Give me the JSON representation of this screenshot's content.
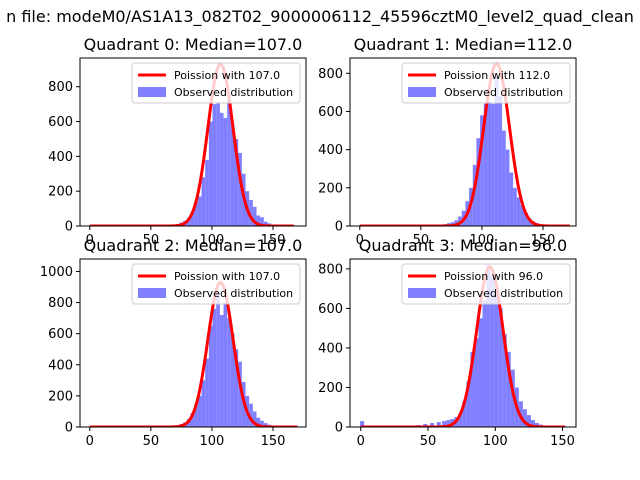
{
  "suptitle": "n file: modeM0/AS1A13_082T02_9000006112_45596cztM0_level2_quad_clean",
  "colors": {
    "hist": "#7f7fff",
    "poisson": "#ff0000",
    "axis": "#000000"
  },
  "chart_data": [
    {
      "type": "bar",
      "title": "Quadrant 0: Median=107.0",
      "xlim": [
        -8,
        177
      ],
      "ylim": [
        0,
        965
      ],
      "xticks": [
        0,
        50,
        100,
        150
      ],
      "yticks": [
        0,
        200,
        400,
        600,
        800
      ],
      "legend_position": "top-right",
      "series": [
        {
          "name": "Poission with 107.0",
          "type": "line",
          "mean": 107,
          "peak": 930,
          "sigma": 10.3,
          "x_range": [
            0,
            167
          ]
        },
        {
          "name": "Observed distribution",
          "type": "histogram",
          "bin_centers": [
            72,
            75,
            78,
            81,
            84,
            87,
            90,
            93,
            96,
            99,
            102,
            105,
            108,
            111,
            114,
            117,
            120,
            123,
            126,
            129,
            132,
            135,
            138,
            141,
            144,
            147,
            150
          ],
          "values": [
            10,
            20,
            30,
            45,
            75,
            140,
            170,
            280,
            380,
            600,
            700,
            710,
            650,
            620,
            730,
            580,
            500,
            420,
            300,
            200,
            150,
            110,
            60,
            50,
            25,
            15,
            8
          ]
        }
      ]
    },
    {
      "type": "bar",
      "title": "Quadrant 1: Median=112.0",
      "xlim": [
        -8,
        177
      ],
      "ylim": [
        0,
        880
      ],
      "xticks": [
        0,
        50,
        100,
        150
      ],
      "yticks": [
        0,
        200,
        400,
        600,
        800
      ],
      "legend_position": "top-right",
      "series": [
        {
          "name": "Poission with 112.0",
          "type": "line",
          "mean": 112,
          "peak": 850,
          "sigma": 10.6,
          "x_range": [
            0,
            172
          ]
        },
        {
          "name": "Observed distribution",
          "type": "histogram",
          "bin_centers": [
            70,
            73,
            76,
            79,
            82,
            85,
            88,
            91,
            94,
            97,
            100,
            103,
            106,
            109,
            112,
            115,
            118,
            121,
            124,
            127,
            130,
            133,
            136,
            139,
            142,
            145,
            148
          ],
          "values": [
            10,
            15,
            20,
            30,
            50,
            80,
            130,
            200,
            320,
            460,
            580,
            640,
            650,
            640,
            780,
            680,
            500,
            400,
            280,
            200,
            150,
            110,
            70,
            40,
            25,
            15,
            8
          ]
        }
      ]
    },
    {
      "type": "bar",
      "title": "Quadrant 2: Median=107.0",
      "xlim": [
        -8,
        177
      ],
      "ylim": [
        0,
        1080
      ],
      "xticks": [
        0,
        50,
        100,
        150
      ],
      "yticks": [
        0,
        200,
        400,
        600,
        800,
        1000
      ],
      "legend_position": "top-right",
      "series": [
        {
          "name": "Poission with 107.0",
          "type": "line",
          "mean": 107,
          "peak": 930,
          "sigma": 10.3,
          "x_range": [
            0,
            170
          ]
        },
        {
          "name": "Observed distribution",
          "type": "histogram",
          "bin_centers": [
            72,
            75,
            78,
            81,
            84,
            87,
            90,
            93,
            96,
            99,
            102,
            105,
            108,
            111,
            114,
            117,
            120,
            123,
            126,
            129,
            132,
            135,
            138,
            141,
            144,
            147,
            150
          ],
          "values": [
            10,
            20,
            30,
            50,
            90,
            150,
            200,
            300,
            440,
            650,
            760,
            870,
            720,
            800,
            700,
            600,
            500,
            420,
            290,
            200,
            150,
            100,
            60,
            40,
            25,
            15,
            8
          ]
        }
      ]
    },
    {
      "type": "bar",
      "title": "Quadrant 3: Median=96.0",
      "xlim": [
        -8,
        160
      ],
      "ylim": [
        0,
        850
      ],
      "xticks": [
        0,
        50,
        100,
        150
      ],
      "yticks": [
        0,
        200,
        400,
        600,
        800
      ],
      "legend_position": "top-right",
      "series": [
        {
          "name": "Poission with 96.0",
          "type": "line",
          "mean": 96,
          "peak": 810,
          "sigma": 9.8,
          "x_range": [
            0,
            152
          ]
        },
        {
          "name": "Observed distribution",
          "type": "histogram",
          "bin_centers": [
            1,
            43,
            48,
            53,
            58,
            62,
            65,
            68,
            71,
            74,
            77,
            80,
            83,
            86,
            89,
            92,
            95,
            98,
            101,
            104,
            107,
            110,
            113,
            116,
            119,
            122,
            125,
            128,
            131,
            134,
            137
          ],
          "values": [
            30,
            10,
            15,
            20,
            25,
            30,
            35,
            40,
            50,
            70,
            130,
            230,
            380,
            450,
            550,
            640,
            820,
            760,
            680,
            600,
            470,
            380,
            290,
            200,
            130,
            90,
            60,
            35,
            20,
            12,
            6
          ]
        }
      ]
    }
  ]
}
